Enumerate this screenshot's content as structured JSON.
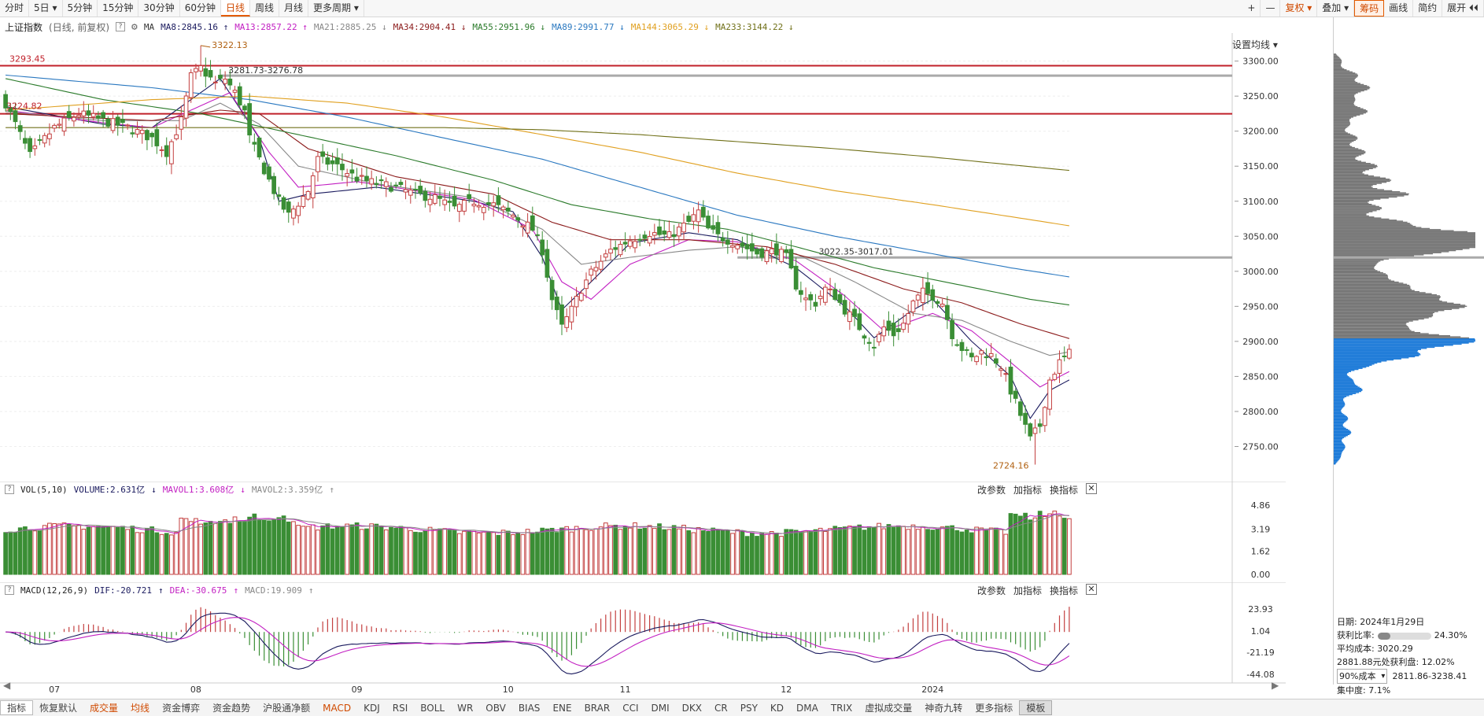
{
  "toolbar": {
    "left": [
      "分时",
      "5日 ▾",
      "5分钟",
      "15分钟",
      "30分钟",
      "60分钟",
      "日线",
      "周线",
      "月线",
      "更多周期 ▾"
    ],
    "active": "日线",
    "right": [
      "+",
      "—",
      "复权 ▾",
      "叠加 ▾",
      "筹码",
      "画线",
      "简约",
      "展开 ⏴⏴"
    ]
  },
  "legend": {
    "name": "上证指数",
    "mode": "(日线, 前复权)",
    "ma": "MA",
    "items": [
      {
        "label": "MA8:2845.16",
        "color": "#1a1a5e",
        "arrow": "↑"
      },
      {
        "label": "MA13:2857.22",
        "color": "#c21fc2",
        "arrow": "↑"
      },
      {
        "label": "MA21:2885.25",
        "color": "#888888",
        "arrow": "↓"
      },
      {
        "label": "MA34:2904.41",
        "color": "#8b1a1a",
        "arrow": "↓"
      },
      {
        "label": "MA55:2951.96",
        "color": "#2a7a2a",
        "arrow": "↓"
      },
      {
        "label": "MA89:2991.77",
        "color": "#2a78c0",
        "arrow": "↓"
      },
      {
        "label": "MA144:3065.29",
        "color": "#e0a020",
        "arrow": "↓"
      },
      {
        "label": "MA233:3144.22",
        "color": "#707018",
        "arrow": "↓"
      }
    ],
    "settings": "设置均线 ▾"
  },
  "colors": {
    "up": "#c33f3f",
    "down": "#3a8e35",
    "hline": "#c0202a",
    "grayband": "#aaaaaa",
    "profile_blue": "#1c7ad8",
    "profile_gray": "#777777"
  },
  "annotations": {
    "line1": "3293.45",
    "line2": "3224.82",
    "high": "3322.13",
    "band1": "3281.73-3276.78",
    "band2": "3022.35-3017.01",
    "low": "2724.16"
  },
  "vol_legend": {
    "name": "VOL(5,10)",
    "volume": "VOLUME:2.631亿",
    "mavol1": "MAVOL1:3.608亿",
    "mavol2": "MAVOL2:3.359亿"
  },
  "macd_legend": {
    "name": "MACD(12,26,9)",
    "dif": "DIF:-20.721",
    "dea": "DEA:-30.675",
    "macd": "MACD:19.909"
  },
  "pane_tools": [
    "改参数",
    "加指标",
    "换指标"
  ],
  "profile": {
    "date_label": "日期:",
    "date": "2024年1月29日",
    "profit_label": "获利比率:",
    "profit_ratio": "24.30%",
    "profit_fraction": 0.243,
    "avg_cost": "平均成本: 3020.29",
    "profit_at": "2881.88元处获利盘: 12.02%",
    "range_select": "90%成本",
    "range": "2811.86-3238.41",
    "concentration": "集中度: 7.1%"
  },
  "bottom": {
    "items": [
      "指标",
      "恢复默认",
      "成交量",
      "均线",
      "资金博弈",
      "资金趋势",
      "沪股通净额",
      "MACD",
      "KDJ",
      "RSI",
      "BOLL",
      "WR",
      "OBV",
      "BIAS",
      "ENE",
      "BRAR",
      "CCI",
      "DMI",
      "DKX",
      "CR",
      "PSY",
      "KD",
      "DMA",
      "TRIX",
      "虚拟成交量",
      "神奇九转",
      "更多指标",
      "模板"
    ],
    "orange": [
      "成交量",
      "均线",
      "MACD"
    ]
  },
  "chart_data": {
    "type": "candlestick",
    "x_tick_labels": [
      "07",
      "08",
      "09",
      "10",
      "11",
      "12",
      "2024"
    ],
    "price_axis": {
      "ticks": [
        2750,
        2800,
        2850,
        2900,
        2950,
        3000,
        3050,
        3100,
        3150,
        3200,
        3250,
        3300
      ],
      "range": [
        2700,
        3340
      ]
    },
    "vol_axis": {
      "ticks": [
        "4.86",
        "3.19",
        "1.62",
        "0.00"
      ],
      "range": [
        0,
        5.2
      ]
    },
    "macd_axis": {
      "ticks": [
        "23.93",
        "1.04",
        "-21.19",
        "-44.08"
      ],
      "range": [
        -48,
        32
      ]
    },
    "close_anchors": [
      [
        0,
        3240
      ],
      [
        5,
        3165
      ],
      [
        10,
        3205
      ],
      [
        15,
        3225
      ],
      [
        20,
        3215
      ],
      [
        25,
        3205
      ],
      [
        30,
        3190
      ],
      [
        33,
        3170
      ],
      [
        36,
        3215
      ],
      [
        38,
        3278
      ],
      [
        40,
        3290
      ],
      [
        43,
        3268
      ],
      [
        45,
        3275
      ],
      [
        47,
        3255
      ],
      [
        49,
        3228
      ],
      [
        50,
        3190
      ],
      [
        52,
        3160
      ],
      [
        54,
        3130
      ],
      [
        56,
        3100
      ],
      [
        58,
        3080
      ],
      [
        62,
        3115
      ],
      [
        64,
        3160
      ],
      [
        68,
        3150
      ],
      [
        72,
        3133
      ],
      [
        76,
        3125
      ],
      [
        80,
        3120
      ],
      [
        84,
        3110
      ],
      [
        88,
        3105
      ],
      [
        92,
        3090
      ],
      [
        96,
        3100
      ],
      [
        100,
        3095
      ],
      [
        104,
        3080
      ],
      [
        108,
        3060
      ],
      [
        110,
        3030
      ],
      [
        112,
        2960
      ],
      [
        114,
        2920
      ],
      [
        116,
        2945
      ],
      [
        118,
        2975
      ],
      [
        120,
        2998
      ],
      [
        124,
        3030
      ],
      [
        128,
        3045
      ],
      [
        132,
        3055
      ],
      [
        136,
        3050
      ],
      [
        140,
        3070
      ],
      [
        142,
        3085
      ],
      [
        144,
        3060
      ],
      [
        146,
        3050
      ],
      [
        150,
        3040
      ],
      [
        152,
        3033
      ],
      [
        154,
        3026
      ],
      [
        156,
        3027
      ],
      [
        158,
        3030
      ],
      [
        160,
        3020
      ],
      [
        162,
        2980
      ],
      [
        164,
        2960
      ],
      [
        166,
        2955
      ],
      [
        168,
        2975
      ],
      [
        170,
        2965
      ],
      [
        172,
        2945
      ],
      [
        174,
        2930
      ],
      [
        176,
        2910
      ],
      [
        178,
        2895
      ],
      [
        180,
        2920
      ],
      [
        182,
        2910
      ],
      [
        184,
        2925
      ],
      [
        186,
        2955
      ],
      [
        188,
        2970
      ],
      [
        190,
        2965
      ],
      [
        192,
        2955
      ],
      [
        194,
        2910
      ],
      [
        196,
        2890
      ],
      [
        198,
        2875
      ],
      [
        200,
        2885
      ],
      [
        202,
        2880
      ],
      [
        204,
        2865
      ],
      [
        206,
        2830
      ],
      [
        208,
        2795
      ],
      [
        210,
        2760
      ],
      [
        212,
        2780
      ],
      [
        214,
        2845
      ],
      [
        216,
        2870
      ],
      [
        218,
        2883
      ]
    ],
    "moving_averages": [
      {
        "name": "MA8",
        "color": "#1a1a5e",
        "anchors": [
          [
            0,
            3235
          ],
          [
            20,
            3210
          ],
          [
            30,
            3205
          ],
          [
            38,
            3245
          ],
          [
            44,
            3275
          ],
          [
            52,
            3190
          ],
          [
            56,
            3100
          ],
          [
            62,
            3110
          ],
          [
            76,
            3120
          ],
          [
            96,
            3100
          ],
          [
            104,
            3085
          ],
          [
            110,
            3020
          ],
          [
            114,
            2945
          ],
          [
            120,
            2985
          ],
          [
            128,
            3040
          ],
          [
            140,
            3055
          ],
          [
            150,
            3045
          ],
          [
            162,
            3005
          ],
          [
            172,
            2950
          ],
          [
            178,
            2905
          ],
          [
            186,
            2945
          ],
          [
            190,
            2960
          ],
          [
            198,
            2900
          ],
          [
            206,
            2850
          ],
          [
            210,
            2790
          ],
          [
            214,
            2830
          ],
          [
            218,
            2845
          ]
        ]
      },
      {
        "name": "MA13",
        "color": "#c21fc2",
        "anchors": [
          [
            0,
            3230
          ],
          [
            20,
            3212
          ],
          [
            30,
            3205
          ],
          [
            38,
            3230
          ],
          [
            46,
            3255
          ],
          [
            54,
            3170
          ],
          [
            60,
            3120
          ],
          [
            72,
            3128
          ],
          [
            96,
            3102
          ],
          [
            108,
            3060
          ],
          [
            114,
            2985
          ],
          [
            120,
            2960
          ],
          [
            128,
            3010
          ],
          [
            140,
            3045
          ],
          [
            150,
            3042
          ],
          [
            162,
            3015
          ],
          [
            172,
            2965
          ],
          [
            180,
            2915
          ],
          [
            190,
            2940
          ],
          [
            198,
            2915
          ],
          [
            206,
            2870
          ],
          [
            212,
            2835
          ],
          [
            218,
            2857
          ]
        ]
      },
      {
        "name": "MA21",
        "color": "#888888",
        "anchors": [
          [
            0,
            3228
          ],
          [
            20,
            3215
          ],
          [
            36,
            3215
          ],
          [
            44,
            3240
          ],
          [
            52,
            3210
          ],
          [
            60,
            3150
          ],
          [
            76,
            3125
          ],
          [
            96,
            3105
          ],
          [
            110,
            3060
          ],
          [
            118,
            3010
          ],
          [
            128,
            3020
          ],
          [
            140,
            3030
          ],
          [
            150,
            3035
          ],
          [
            162,
            3025
          ],
          [
            174,
            2985
          ],
          [
            186,
            2940
          ],
          [
            196,
            2930
          ],
          [
            206,
            2900
          ],
          [
            214,
            2880
          ],
          [
            218,
            2885
          ]
        ]
      },
      {
        "name": "MA34",
        "color": "#8b1a1a",
        "anchors": [
          [
            0,
            3225
          ],
          [
            30,
            3215
          ],
          [
            44,
            3230
          ],
          [
            52,
            3225
          ],
          [
            62,
            3175
          ],
          [
            80,
            3135
          ],
          [
            100,
            3110
          ],
          [
            112,
            3070
          ],
          [
            124,
            3045
          ],
          [
            140,
            3045
          ],
          [
            156,
            3035
          ],
          [
            170,
            3010
          ],
          [
            184,
            2975
          ],
          [
            196,
            2955
          ],
          [
            208,
            2925
          ],
          [
            218,
            2904
          ]
        ]
      },
      {
        "name": "MA55",
        "color": "#2a7a2a",
        "anchors": [
          [
            0,
            3275
          ],
          [
            20,
            3245
          ],
          [
            40,
            3225
          ],
          [
            60,
            3195
          ],
          [
            80,
            3165
          ],
          [
            100,
            3130
          ],
          [
            116,
            3095
          ],
          [
            132,
            3075
          ],
          [
            148,
            3060
          ],
          [
            162,
            3035
          ],
          [
            178,
            3005
          ],
          [
            196,
            2980
          ],
          [
            210,
            2960
          ],
          [
            218,
            2952
          ]
        ]
      },
      {
        "name": "MA89",
        "color": "#2a78c0",
        "anchors": [
          [
            0,
            3280
          ],
          [
            30,
            3262
          ],
          [
            50,
            3245
          ],
          [
            70,
            3220
          ],
          [
            90,
            3190
          ],
          [
            110,
            3160
          ],
          [
            130,
            3120
          ],
          [
            150,
            3080
          ],
          [
            170,
            3050
          ],
          [
            190,
            3025
          ],
          [
            206,
            3005
          ],
          [
            218,
            2992
          ]
        ]
      },
      {
        "name": "MA144",
        "color": "#e0a020",
        "anchors": [
          [
            0,
            3230
          ],
          [
            30,
            3245
          ],
          [
            50,
            3250
          ],
          [
            70,
            3240
          ],
          [
            90,
            3220
          ],
          [
            110,
            3195
          ],
          [
            130,
            3170
          ],
          [
            150,
            3140
          ],
          [
            170,
            3115
          ],
          [
            190,
            3095
          ],
          [
            206,
            3078
          ],
          [
            218,
            3065
          ]
        ]
      },
      {
        "name": "MA233",
        "color": "#707018",
        "anchors": [
          [
            0,
            3205
          ],
          [
            40,
            3205
          ],
          [
            60,
            3205
          ],
          [
            90,
            3205
          ],
          [
            110,
            3202
          ],
          [
            130,
            3195
          ],
          [
            150,
            3185
          ],
          [
            170,
            3175
          ],
          [
            190,
            3163
          ],
          [
            206,
            3152
          ],
          [
            218,
            3144
          ]
        ]
      }
    ],
    "horizontal_lines": [
      3293.45,
      3224.82
    ],
    "gray_bands": [
      3279.2,
      3019.7
    ],
    "n_bars": 219,
    "series_count": 8
  }
}
